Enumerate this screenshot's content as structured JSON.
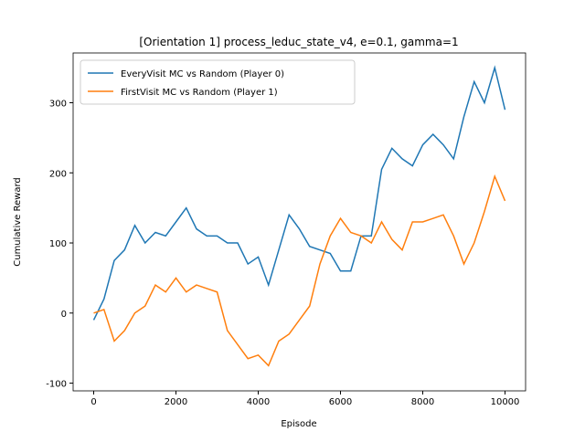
{
  "chart_data": {
    "type": "line",
    "title": "[Orientation 1] process_leduc_state_v4, e=0.1, gamma=1",
    "x_label": "Episode",
    "y_label": "Cumulative Reward",
    "x": [
      0,
      250,
      500,
      750,
      1000,
      1250,
      1500,
      1750,
      2000,
      2250,
      2500,
      2750,
      3000,
      3250,
      3500,
      3750,
      4000,
      4250,
      4500,
      4750,
      5000,
      5250,
      5500,
      5750,
      6000,
      6250,
      6500,
      6750,
      7000,
      7250,
      7500,
      7750,
      8000,
      8250,
      8500,
      8750,
      9000,
      9250,
      9500,
      9750,
      10000
    ],
    "series": [
      {
        "name": "EveryVisit MC vs Random (Player 0)",
        "color": "#1f77b4",
        "values": [
          -10,
          20,
          75,
          90,
          125,
          100,
          115,
          110,
          130,
          150,
          120,
          110,
          110,
          100,
          100,
          70,
          80,
          40,
          90,
          140,
          120,
          95,
          90,
          85,
          60,
          60,
          110,
          110,
          205,
          235,
          220,
          210,
          240,
          255,
          240,
          220,
          280,
          330,
          300,
          350,
          290
        ]
      },
      {
        "name": "FirstVisit MC vs Random (Player 1)",
        "color": "#ff7f0e",
        "values": [
          0,
          5,
          -40,
          -25,
          0,
          10,
          40,
          30,
          50,
          30,
          40,
          35,
          30,
          -25,
          -45,
          -65,
          -60,
          -75,
          -40,
          -30,
          -10,
          10,
          70,
          110,
          135,
          115,
          110,
          100,
          130,
          105,
          90,
          130,
          130,
          135,
          140,
          110,
          70,
          100,
          145,
          195,
          160
        ]
      }
    ],
    "xlim": [
      -500,
      10500
    ],
    "ylim": [
      -111,
      371
    ],
    "xticks": [
      0,
      2000,
      4000,
      6000,
      8000,
      10000
    ],
    "yticks": [
      -100,
      0,
      100,
      200,
      300
    ],
    "legend": "upper left",
    "grid": false
  }
}
